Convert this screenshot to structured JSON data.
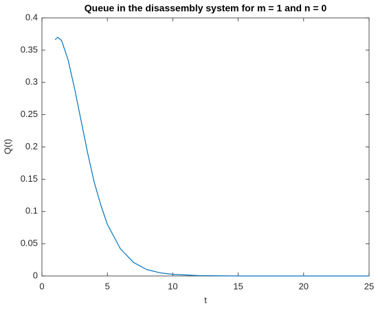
{
  "chart_data": {
    "type": "line",
    "title": "Queue in the disassembly system for m = 1 and n = 0",
    "x_label": "t",
    "y_label": "Q(t)",
    "x": [
      1,
      1.2,
      1.5,
      2,
      2.5,
      3,
      3.5,
      4,
      4.5,
      5,
      6,
      7,
      8,
      9,
      10,
      12,
      15,
      20,
      25
    ],
    "series": [
      {
        "name": "Q(t)",
        "color": "#0072bd",
        "values": [
          0.366,
          0.37,
          0.365,
          0.335,
          0.29,
          0.24,
          0.19,
          0.145,
          0.11,
          0.08,
          0.042,
          0.021,
          0.01,
          0.005,
          0.0025,
          0.0005,
          0,
          0,
          0
        ]
      }
    ],
    "xlim": [
      0,
      25
    ],
    "xticks": [
      0,
      5,
      10,
      15,
      20,
      25
    ],
    "ylim": [
      0,
      0.4
    ],
    "yticks": [
      0,
      0.05,
      0.1,
      0.15,
      0.2,
      0.25,
      0.3,
      0.35,
      0.4
    ]
  }
}
